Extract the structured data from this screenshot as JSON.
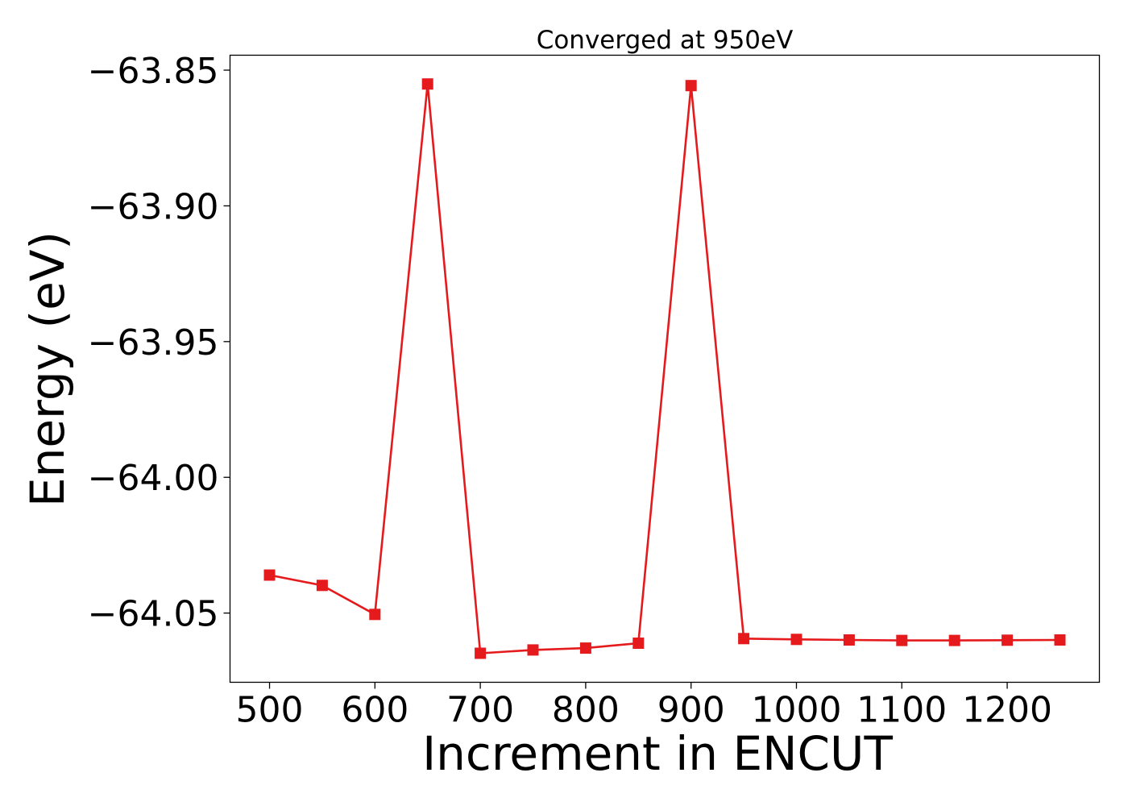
{
  "chart_data": {
    "type": "line",
    "title": "Converged at 950eV",
    "xlabel": "Increment in ENCUT",
    "ylabel": "Energy (eV)",
    "xlim": [
      462.5,
      1287.5
    ],
    "ylim": [
      -64.0755,
      -63.8445
    ],
    "xticks": [
      500,
      600,
      700,
      800,
      900,
      1000,
      1100,
      1200
    ],
    "xtick_labels": [
      "500",
      "600",
      "700",
      "800",
      "900",
      "1000",
      "1100",
      "1200"
    ],
    "yticks": [
      -63.85,
      -63.9,
      -63.95,
      -64.0,
      -64.05
    ],
    "ytick_labels": [
      "−63.85",
      "−63.90",
      "−63.95",
      "−64.00",
      "−64.05"
    ],
    "grid": false,
    "series": [
      {
        "color": "#e41a1c",
        "marker": "square",
        "x": [
          500,
          550,
          600,
          650,
          700,
          750,
          800,
          850,
          900,
          950,
          1000,
          1050,
          1100,
          1150,
          1200,
          1250
        ],
        "y": [
          -64.036,
          -64.0398,
          -64.0505,
          -63.8551,
          -64.0648,
          -64.0636,
          -64.0629,
          -64.0611,
          -63.8557,
          -64.0594,
          -64.0597,
          -64.0599,
          -64.0601,
          -64.0601,
          -64.06,
          -64.0599
        ]
      }
    ]
  }
}
